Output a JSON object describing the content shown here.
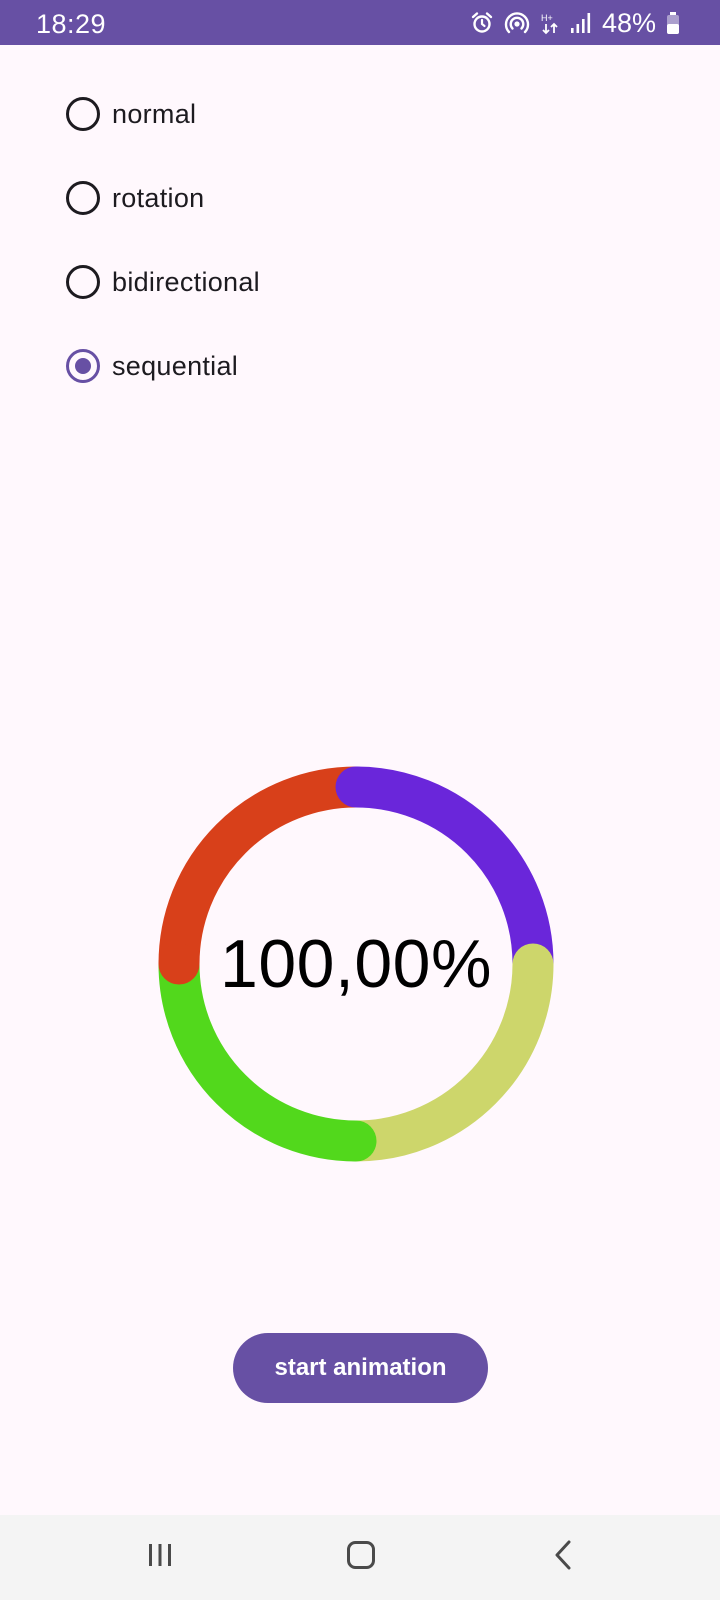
{
  "status_bar": {
    "time": "18:29",
    "battery": "48%",
    "icons": [
      "alarm-icon",
      "hotspot-icon",
      "data-transfer-icon",
      "signal-icon",
      "battery-icon"
    ],
    "background": "#6750A4"
  },
  "radio_group": {
    "options": [
      {
        "label": "normal",
        "selected": false
      },
      {
        "label": "rotation",
        "selected": false
      },
      {
        "label": "bidirectional",
        "selected": false
      },
      {
        "label": "sequential",
        "selected": true
      }
    ]
  },
  "progress": {
    "text": "100,00%",
    "value": 1.0,
    "segments": [
      {
        "color": "#6A26DA",
        "fraction": 0.25
      },
      {
        "color": "#CDD66B",
        "fraction": 0.25
      },
      {
        "color": "#52D81C",
        "fraction": 0.25
      },
      {
        "color": "#D8401A",
        "fraction": 0.25
      }
    ]
  },
  "button": {
    "label": "start animation",
    "color": "#6750A4"
  },
  "nav_bar": {
    "icons": [
      "recent-apps-icon",
      "home-icon",
      "back-icon"
    ]
  }
}
